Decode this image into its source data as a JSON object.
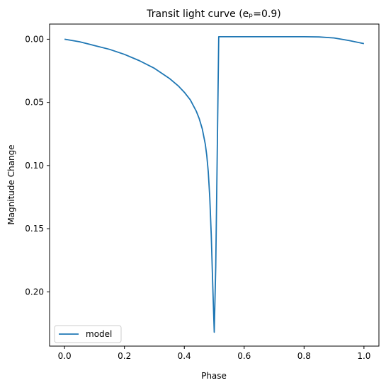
{
  "chart_data": {
    "type": "line",
    "title": "Transit light curve (eₚ=0.9)",
    "xlabel": "Phase",
    "ylabel": "Magnitude Change",
    "xlim": [
      -0.05,
      1.05
    ],
    "ylim": [
      0.243,
      -0.012
    ],
    "y_inverted": true,
    "x_ticks": [
      0.0,
      0.2,
      0.4,
      0.6,
      0.8,
      1.0
    ],
    "x_tick_labels": [
      "0.0",
      "0.2",
      "0.4",
      "0.6",
      "0.8",
      "1.0"
    ],
    "y_ticks": [
      0.0,
      0.05,
      0.1,
      0.15,
      0.2
    ],
    "y_tick_labels": [
      "0.00",
      "0.05",
      "0.10",
      "0.15",
      "0.20"
    ],
    "grid": false,
    "legend": {
      "location": "lower left",
      "entries": [
        "model"
      ]
    },
    "colors": {
      "model": "#1f77b4"
    },
    "series": [
      {
        "name": "model",
        "x": [
          0.0,
          0.05,
          0.1,
          0.15,
          0.2,
          0.25,
          0.3,
          0.35,
          0.38,
          0.4,
          0.42,
          0.44,
          0.45,
          0.46,
          0.47,
          0.475,
          0.48,
          0.485,
          0.49,
          0.495,
          0.5,
          0.505,
          0.51,
          0.515,
          0.55,
          0.6,
          0.65,
          0.7,
          0.75,
          0.8,
          0.85,
          0.9,
          0.95,
          1.0
        ],
        "y": [
          0.0,
          0.002,
          0.005,
          0.008,
          0.012,
          0.017,
          0.023,
          0.031,
          0.037,
          0.042,
          0.048,
          0.057,
          0.063,
          0.071,
          0.083,
          0.092,
          0.105,
          0.125,
          0.155,
          0.195,
          0.232,
          0.18,
          0.09,
          -0.002,
          -0.002,
          -0.002,
          -0.002,
          -0.002,
          -0.002,
          -0.002,
          -0.0018,
          -0.001,
          0.001,
          0.0035
        ]
      }
    ]
  }
}
